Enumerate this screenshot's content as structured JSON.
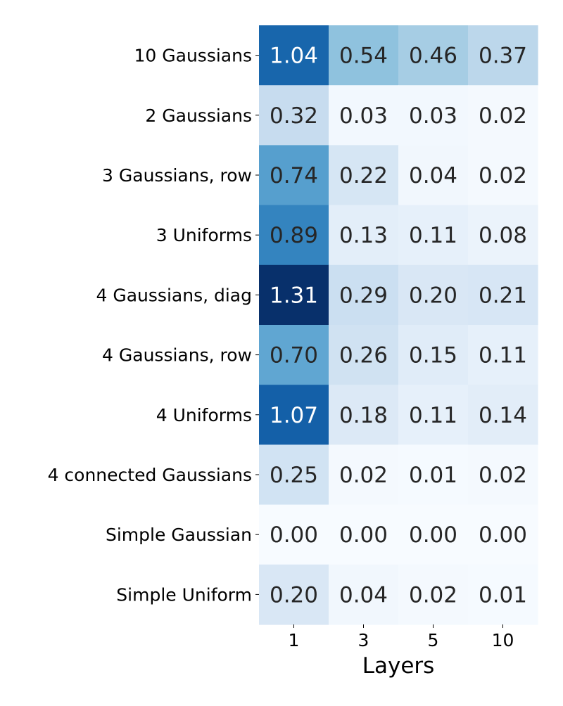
{
  "chart_data": {
    "type": "heatmap",
    "title": "",
    "xlabel": "Layers",
    "ylabel": "",
    "x_categories": [
      "1",
      "3",
      "5",
      "10"
    ],
    "y_categories": [
      "10 Gaussians",
      "2 Gaussians",
      "3 Gaussians, row",
      "3 Uniforms",
      "4 Gaussians, diag",
      "4 Gaussians, row",
      "4 Uniforms",
      "4 connected Gaussians",
      "Simple Gaussian",
      "Simple Uniform"
    ],
    "values": [
      [
        1.04,
        0.54,
        0.46,
        0.37
      ],
      [
        0.32,
        0.03,
        0.03,
        0.02
      ],
      [
        0.74,
        0.22,
        0.04,
        0.02
      ],
      [
        0.89,
        0.13,
        0.11,
        0.08
      ],
      [
        1.31,
        0.29,
        0.2,
        0.21
      ],
      [
        0.7,
        0.26,
        0.15,
        0.11
      ],
      [
        1.07,
        0.18,
        0.11,
        0.14
      ],
      [
        0.25,
        0.02,
        0.01,
        0.02
      ],
      [
        0.0,
        0.0,
        0.0,
        0.0
      ],
      [
        0.2,
        0.04,
        0.02,
        0.01
      ]
    ],
    "value_format": "2 decimals",
    "colormap": "Blues",
    "vmin": 0.0,
    "vmax": 1.31,
    "colorbar": false,
    "grid": false,
    "colors": {
      "label_text": "#000000",
      "annotation_dark": "#262626",
      "annotation_light": "#ffffff"
    }
  }
}
